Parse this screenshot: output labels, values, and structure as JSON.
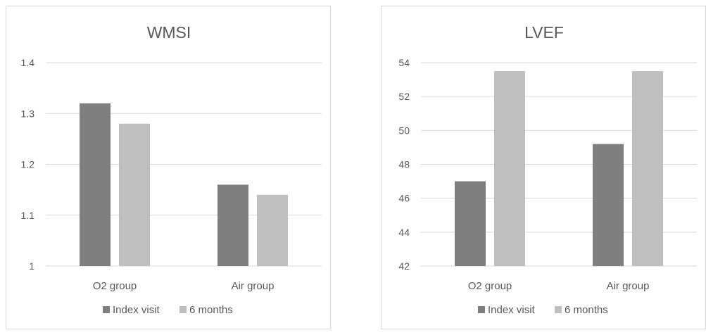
{
  "colors": {
    "index_visit": "#7f7f7f",
    "six_months": "#bfbfbf",
    "grid": "#d9d9d9",
    "text": "#595959"
  },
  "chart_data": [
    {
      "type": "bar",
      "title": "WMSI",
      "categories": [
        "O2 group",
        "Air group"
      ],
      "series": [
        {
          "name": "Index visit",
          "values": [
            1.32,
            1.16
          ]
        },
        {
          "name": "6 months",
          "values": [
            1.28,
            1.14
          ]
        }
      ],
      "ylim": [
        1,
        1.4
      ],
      "yticks": [
        "1",
        "1.1",
        "1.2",
        "1.3",
        "1.4"
      ],
      "grid": true,
      "legend": "bottom"
    },
    {
      "type": "bar",
      "title": "LVEF",
      "categories": [
        "O2 group",
        "Air group"
      ],
      "series": [
        {
          "name": "Index visit",
          "values": [
            47,
            49.2
          ]
        },
        {
          "name": "6 months",
          "values": [
            53.5,
            53.5
          ]
        }
      ],
      "ylim": [
        42,
        54
      ],
      "yticks": [
        "42",
        "44",
        "46",
        "48",
        "50",
        "52",
        "54"
      ],
      "grid": true,
      "legend": "bottom"
    }
  ]
}
